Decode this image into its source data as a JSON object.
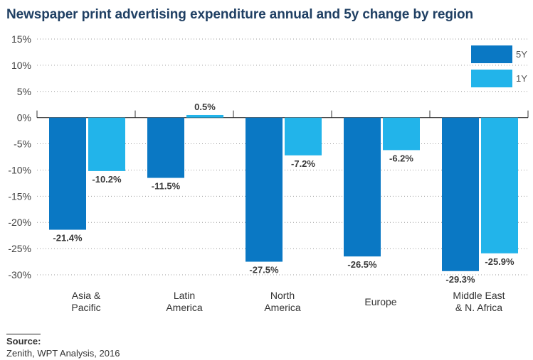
{
  "chart_data": {
    "type": "bar",
    "title": "Newspaper print advertising expenditure annual and 5y change by region",
    "categories": [
      [
        "Asia &",
        "Pacific"
      ],
      [
        "Latin",
        "America"
      ],
      [
        "North",
        "America"
      ],
      [
        "Europe"
      ],
      [
        "Middle East",
        "& N. Africa"
      ]
    ],
    "series": [
      {
        "name": "5Y",
        "color": "#0a78c4",
        "values": [
          -21.4,
          -11.5,
          -27.5,
          -26.5,
          -29.3
        ]
      },
      {
        "name": "1Y",
        "color": "#22b4ea",
        "values": [
          -10.2,
          0.5,
          -7.2,
          -6.2,
          -25.9
        ]
      }
    ],
    "ylim": [
      -30,
      15
    ],
    "yticks": [
      15,
      10,
      5,
      0,
      -5,
      -10,
      -15,
      -20,
      -25,
      -30
    ],
    "ytick_labels": [
      "15%",
      "10%",
      "5%",
      "0%",
      "-5%",
      "-10%",
      "-15%",
      "-20%",
      "-25%",
      "-30%"
    ],
    "data_labels": [
      [
        "-21.4%",
        "-11.5%",
        "-27.5%",
        "-26.5%",
        "-29.3%"
      ],
      [
        "-10.2%",
        "0.5%",
        "-7.2%",
        "-6.2%",
        "-25.9%"
      ]
    ],
    "grid": true,
    "legend": "top-right"
  },
  "source": {
    "label": "Source:",
    "text": "Zenith, WPT Analysis, 2016"
  }
}
